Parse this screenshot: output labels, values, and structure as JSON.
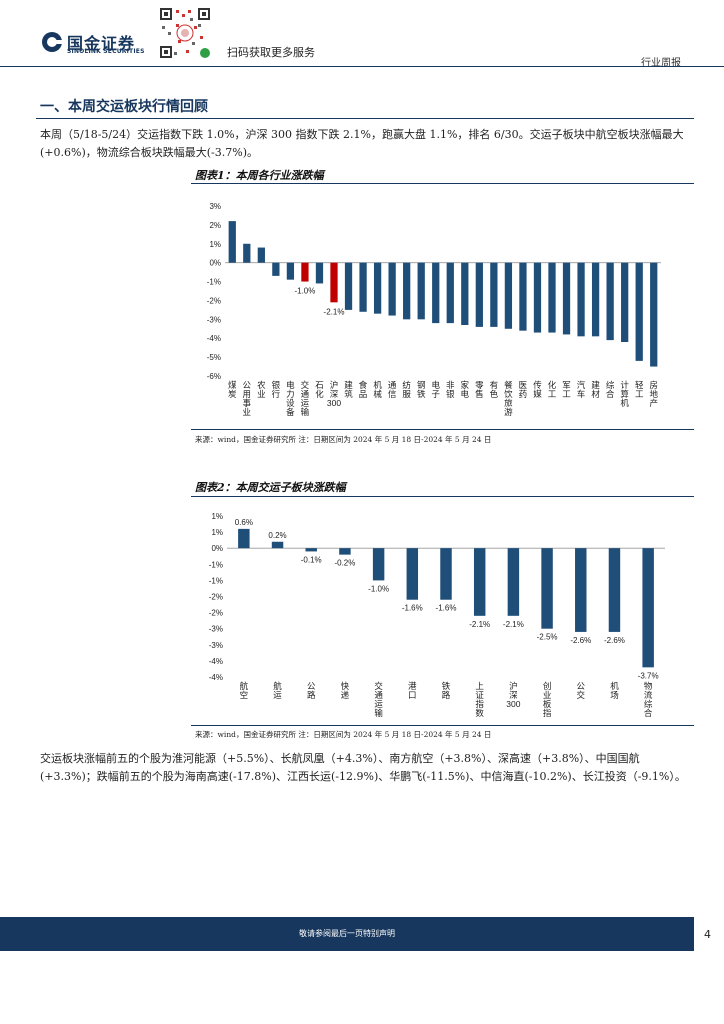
{
  "header": {
    "logo_cn": "国金证券",
    "logo_en": "SINOLINK SECURITIES",
    "qr_label": "扫码获取更多服务",
    "report_type": "行业周报"
  },
  "section": {
    "title": "一、本周交运板块行情回顾",
    "para1": "本周（5/18-5/24）交运指数下跌 1.0%，沪深 300 指数下跌 2.1%，跑赢大盘 1.1%，排名 6/30。交运子板块中航空板块涨幅最大(+0.6%)，物流综合板块跌幅最大(-3.7%)。",
    "para2": "交运板块涨幅前五的个股为淮河能源（+5.5%）、长航凤凰（+4.3%）、南方航空（+3.8%）、深高速（+3.8%）、中国国航(+3.3%)；跌幅前五的个股为海南高速(-17.8%)、江西长运(-12.9%)、华鹏飞(-11.5%)、中信海直(-10.2%)、长江投资（-9.1%）。"
  },
  "figure1": {
    "title": "图表1：本周各行业涨跌幅",
    "source": "来源：wind，国金证券研究所    注：日期区间为 2024 年 5 月 18 日-2024 年 5 月 24 日"
  },
  "figure2": {
    "title": "图表2：本周交运子板块涨跌幅",
    "source": "来源：wind，国金证券研究所    注：日期区间为 2024 年 5 月 18 日-2024 年 5 月 24 日"
  },
  "footer": {
    "disclaimer": "敬请参阅最后一页特别声明",
    "page": "4"
  },
  "colors": {
    "navy": "#1f4e79",
    "red": "#c00000",
    "brand": "#17375e"
  },
  "chart_data": [
    {
      "type": "bar",
      "title": "本周各行业涨跌幅",
      "categories": [
        "煤炭",
        "公用事业",
        "农业",
        "银行",
        "电力设备",
        "交通运输",
        "石化",
        "沪深300",
        "建筑",
        "食品",
        "机械",
        "通信",
        "纺服",
        "钢铁",
        "电子",
        "非银",
        "家电",
        "零售",
        "有色",
        "餐饮旅游",
        "医药",
        "传媒",
        "化工",
        "军工",
        "汽车",
        "建材",
        "综合",
        "计算机",
        "轻工",
        "房地产"
      ],
      "values": [
        2.2,
        1.0,
        0.8,
        -0.7,
        -0.9,
        -1.0,
        -1.1,
        -2.1,
        -2.5,
        -2.6,
        -2.7,
        -2.8,
        -3.0,
        -3.0,
        -3.2,
        -3.2,
        -3.3,
        -3.4,
        -3.4,
        -3.5,
        -3.6,
        -3.7,
        -3.7,
        -3.8,
        -3.9,
        -3.9,
        -4.1,
        -4.2,
        -5.2,
        -5.5
      ],
      "highlight": [
        "交通运输",
        "沪深300"
      ],
      "data_labels": [
        {
          "category": "交通运输",
          "text": "-1.0%"
        },
        {
          "category": "沪深300",
          "text": "-2.1%"
        }
      ],
      "y_ticks": [
        "3%",
        "2%",
        "1%",
        "0%",
        "-1%",
        "-2%",
        "-3%",
        "-4%",
        "-5%",
        "-6%"
      ],
      "ylim": [
        -6,
        3
      ]
    },
    {
      "type": "bar",
      "title": "本周交运子板块涨跌幅",
      "categories": [
        "航空",
        "航运",
        "公路",
        "快递",
        "交通运输",
        "港口",
        "铁路",
        "上证指数",
        "沪深300",
        "创业板指",
        "公交",
        "机场",
        "物流综合"
      ],
      "values": [
        0.6,
        0.2,
        -0.1,
        -0.2,
        -1.0,
        -1.6,
        -1.6,
        -2.1,
        -2.1,
        -2.5,
        -2.6,
        -2.6,
        -3.7
      ],
      "labels": [
        "0.6%",
        "0.2%",
        "-0.1%",
        "-0.2%",
        "-1.0%",
        "-1.6%",
        "-1.6%",
        "-2.1%",
        "-2.1%",
        "-2.5%",
        "-2.6%",
        "-2.6%",
        "-3.7%"
      ],
      "y_ticks": [
        "1%",
        "1%",
        "0%",
        "-1%",
        "-1%",
        "-2%",
        "-2%",
        "-3%",
        "-3%",
        "-4%",
        "-4%"
      ],
      "ylim": [
        -4,
        1
      ]
    }
  ]
}
